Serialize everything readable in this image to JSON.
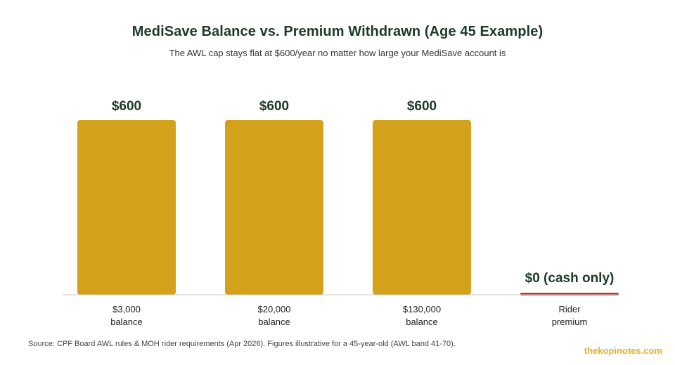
{
  "colors": {
    "bar": "#d4a21a",
    "zero_bar": "#c0392b",
    "value_label": "#1c3a26",
    "axis_line": "#cccccc",
    "tick_label": "#222222",
    "brand": "#e0b12a"
  },
  "footer": {
    "source": "Source: CPF Board AWL rules & MOH rider requirements (Apr 2026). Figures illustrative for a 45-year-old (AWL band 41-70).",
    "brand": "thekopinotes.com"
  },
  "chart_data": {
    "type": "bar",
    "title": "MediSave Balance vs. Premium Withdrawn (Age 45 Example)",
    "subtitle": "The AWL cap stays flat at $600/year no matter how large your MediSave account is",
    "categories": [
      [
        "$3,000",
        "balance"
      ],
      [
        "$20,000",
        "balance"
      ],
      [
        "$130,000",
        "balance"
      ],
      [
        "Rider",
        "premium"
      ]
    ],
    "values": [
      600,
      600,
      600,
      0
    ],
    "data_labels": [
      "$600",
      "$600",
      "$600",
      "$0 (cash only)"
    ],
    "ylim": [
      0,
      700
    ],
    "grid": false,
    "xlabel": "",
    "ylabel": ""
  }
}
